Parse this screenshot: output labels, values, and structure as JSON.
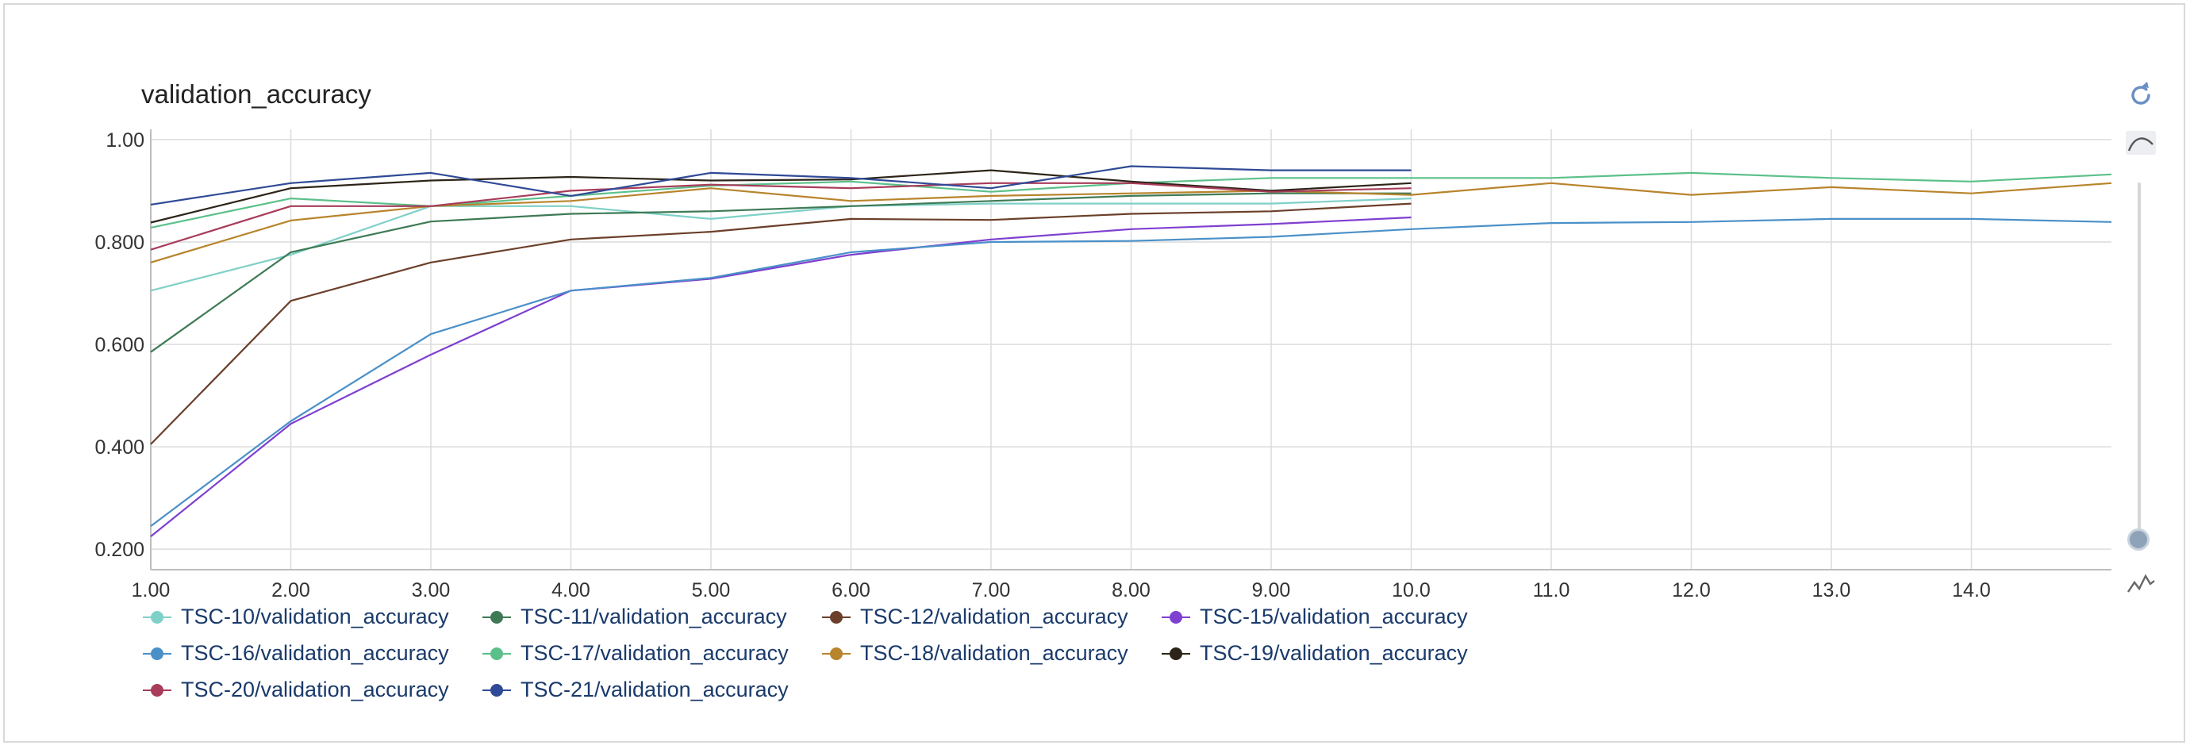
{
  "chart_data": {
    "type": "line",
    "title": "validation_accuracy",
    "xlabel": "",
    "ylabel": "",
    "xlim": [
      1,
      15
    ],
    "ylim": [
      0.16,
      1.02
    ],
    "grid": true,
    "legend_position": "bottom",
    "x_ticks": [
      "1.00",
      "2.00",
      "3.00",
      "4.00",
      "5.00",
      "6.00",
      "7.00",
      "8.00",
      "9.00",
      "10.0",
      "11.0",
      "12.0",
      "13.0",
      "14.0"
    ],
    "x_tick_values": [
      1,
      2,
      3,
      4,
      5,
      6,
      7,
      8,
      9,
      10,
      11,
      12,
      13,
      14
    ],
    "y_ticks": [
      "0.200",
      "0.400",
      "0.600",
      "0.800",
      "1.00"
    ],
    "y_tick_values": [
      0.2,
      0.4,
      0.6,
      0.8,
      1.0
    ],
    "series": [
      {
        "name": "TSC-10/validation_accuracy",
        "color": "#7fd0c8",
        "x": [
          1,
          2,
          3,
          4,
          5,
          6,
          7,
          8,
          9,
          10
        ],
        "values": [
          0.705,
          0.775,
          0.87,
          0.87,
          0.845,
          0.87,
          0.875,
          0.875,
          0.875,
          0.885
        ]
      },
      {
        "name": "TSC-11/validation_accuracy",
        "color": "#3e7a55",
        "x": [
          1,
          2,
          3,
          4,
          5,
          6,
          7,
          8,
          9,
          10
        ],
        "values": [
          0.585,
          0.78,
          0.84,
          0.855,
          0.86,
          0.87,
          0.88,
          0.89,
          0.895,
          0.895
        ]
      },
      {
        "name": "TSC-12/validation_accuracy",
        "color": "#6b3f2a",
        "x": [
          1,
          2,
          3,
          4,
          5,
          6,
          7,
          8,
          9,
          10
        ],
        "values": [
          0.405,
          0.685,
          0.76,
          0.805,
          0.82,
          0.845,
          0.843,
          0.855,
          0.86,
          0.875
        ]
      },
      {
        "name": "TSC-15/validation_accuracy",
        "color": "#7f3fd0",
        "x": [
          1,
          2,
          3,
          4,
          5,
          6,
          7,
          8,
          9,
          10
        ],
        "values": [
          0.225,
          0.445,
          0.58,
          0.705,
          0.728,
          0.775,
          0.805,
          0.825,
          0.835,
          0.848
        ]
      },
      {
        "name": "TSC-16/validation_accuracy",
        "color": "#4a90c8",
        "x": [
          1,
          2,
          3,
          4,
          5,
          6,
          7,
          8,
          9,
          10,
          11,
          12,
          13,
          14,
          15
        ],
        "values": [
          0.245,
          0.45,
          0.62,
          0.705,
          0.73,
          0.78,
          0.8,
          0.802,
          0.81,
          0.825,
          0.837,
          0.839,
          0.845,
          0.845,
          0.839
        ]
      },
      {
        "name": "TSC-17/validation_accuracy",
        "color": "#5cc08a",
        "x": [
          1,
          2,
          3,
          4,
          5,
          6,
          7,
          8,
          9,
          10,
          11,
          12,
          13,
          14,
          15
        ],
        "values": [
          0.828,
          0.885,
          0.87,
          0.89,
          0.91,
          0.918,
          0.898,
          0.915,
          0.925,
          0.925,
          0.925,
          0.935,
          0.925,
          0.918,
          0.932
        ]
      },
      {
        "name": "TSC-18/validation_accuracy",
        "color": "#b8842c",
        "x": [
          1,
          2,
          3,
          4,
          5,
          6,
          7,
          8,
          9,
          10,
          11,
          12,
          13,
          14,
          15
        ],
        "values": [
          0.76,
          0.842,
          0.87,
          0.88,
          0.905,
          0.88,
          0.89,
          0.895,
          0.9,
          0.892,
          0.915,
          0.892,
          0.907,
          0.895,
          0.915
        ]
      },
      {
        "name": "TSC-19/validation_accuracy",
        "color": "#2c2418",
        "x": [
          1,
          2,
          3,
          4,
          5,
          6,
          7,
          8,
          9,
          10
        ],
        "values": [
          0.838,
          0.905,
          0.92,
          0.927,
          0.92,
          0.922,
          0.94,
          0.918,
          0.9,
          0.915
        ]
      },
      {
        "name": "TSC-20/validation_accuracy",
        "color": "#a83c5a",
        "x": [
          1,
          2,
          3,
          4,
          5,
          6,
          7,
          8,
          9,
          10
        ],
        "values": [
          0.785,
          0.87,
          0.87,
          0.9,
          0.912,
          0.905,
          0.915,
          0.915,
          0.898,
          0.905
        ]
      },
      {
        "name": "TSC-21/validation_accuracy",
        "color": "#2f4a96",
        "x": [
          1,
          2,
          3,
          4,
          5,
          6,
          7,
          8,
          9,
          10
        ],
        "values": [
          0.873,
          0.915,
          0.935,
          0.89,
          0.935,
          0.925,
          0.905,
          0.948,
          0.94,
          0.94
        ]
      }
    ]
  },
  "controls": {
    "reset_icon": "reset-icon",
    "smoothing_icon": "smoothing-curve-icon",
    "raw_icon": "raw-line-icon",
    "slider_level": 0.0
  }
}
